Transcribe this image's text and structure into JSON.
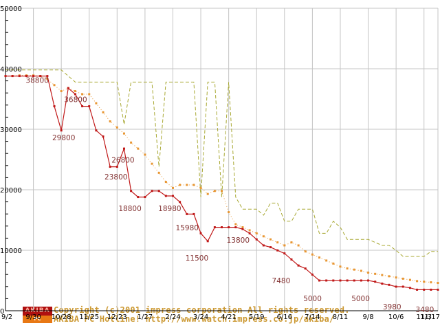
{
  "chart_data": {
    "type": "line",
    "title": "",
    "xlabel": "",
    "ylabel": "",
    "x_axis": {
      "tick_labels": [
        "9/2",
        "9/30",
        "10/28",
        "11/25",
        "12/23",
        "1/27",
        "2/24",
        "3/24",
        "4/21",
        "5/19",
        "6/16",
        "7/14",
        "8/11",
        "9/8",
        "10/6",
        "11/3",
        "11/17"
      ],
      "tick_weeks": [
        0,
        4,
        8,
        12,
        16,
        20,
        24,
        28,
        32,
        36,
        40,
        44,
        48,
        52,
        56,
        60,
        62
      ],
      "range": [
        0,
        62
      ]
    },
    "y_axis": {
      "ticks": [
        0,
        10000,
        20000,
        30000,
        40000,
        50000
      ],
      "range": [
        0,
        50000
      ],
      "minor_step": 2000
    },
    "grid": {
      "color": "#c4c4c4",
      "axis_color": "#000000"
    },
    "series": [
      {
        "name": "highest-price",
        "color": "#a8a832",
        "style": "dashed",
        "markers": false,
        "values": [
          39800,
          39800,
          39800,
          39800,
          39800,
          39800,
          39800,
          39800,
          39800,
          38800,
          37800,
          37800,
          37800,
          37800,
          37800,
          37800,
          37800,
          30800,
          37800,
          37800,
          37800,
          37800,
          23800,
          37800,
          37800,
          37800,
          37800,
          37800,
          18800,
          37800,
          37800,
          18800,
          37800,
          18800,
          16800,
          16800,
          16800,
          15800,
          17800,
          17800,
          14800,
          14800,
          16800,
          16800,
          16800,
          12800,
          12800,
          14800,
          13800,
          11800,
          11800,
          11800,
          11800,
          11300,
          10800,
          10800,
          9980,
          8980,
          8980,
          8980,
          8980,
          9800,
          9800
        ]
      },
      {
        "name": "average-price",
        "color": "#e89632",
        "style": "dotted",
        "markers": true,
        "values": [
          38800,
          38800,
          38900,
          38900,
          38900,
          38800,
          38300,
          37300,
          36300,
          36800,
          36300,
          35800,
          35800,
          34300,
          32800,
          31300,
          30300,
          29300,
          27800,
          26800,
          25800,
          24300,
          22800,
          21300,
          20300,
          20800,
          20800,
          20800,
          20300,
          19300,
          19800,
          19800,
          16300,
          14300,
          13800,
          13300,
          12800,
          12300,
          11800,
          11300,
          10800,
          11300,
          10800,
          9800,
          9300,
          8800,
          8300,
          7800,
          7300,
          7000,
          6800,
          6600,
          6300,
          6100,
          5900,
          5700,
          5500,
          5300,
          5100,
          4900,
          4800,
          4700,
          4600
        ]
      },
      {
        "name": "lowest-price",
        "color": "#c01818",
        "style": "solid",
        "markers": true,
        "values": [
          38800,
          38800,
          38800,
          38800,
          38800,
          38800,
          38800,
          33800,
          29800,
          36800,
          35800,
          33800,
          33800,
          29800,
          28800,
          23800,
          23800,
          26800,
          19800,
          18800,
          18800,
          19800,
          19800,
          18980,
          18980,
          17980,
          15980,
          15980,
          12800,
          11500,
          13800,
          13800,
          13800,
          13800,
          13500,
          12800,
          11800,
          10800,
          10500,
          9980,
          9480,
          8480,
          7480,
          6980,
          5980,
          5000,
          5000,
          5000,
          5000,
          5000,
          5000,
          5000,
          5000,
          4800,
          4480,
          4280,
          3980,
          3980,
          3780,
          3480,
          3480,
          3480,
          3480
        ]
      }
    ],
    "point_labels": [
      {
        "text": "38800",
        "week": 2.9,
        "value": 38600
      },
      {
        "text": "36800",
        "week": 8.4,
        "value": 35400
      },
      {
        "text": "29800",
        "week": 6.7,
        "value": 29100
      },
      {
        "text": "26800",
        "week": 15.2,
        "value": 25400
      },
      {
        "text": "23800",
        "week": 14.2,
        "value": 22600
      },
      {
        "text": "18800",
        "week": 16.2,
        "value": 17400
      },
      {
        "text": "18980",
        "week": 21.9,
        "value": 17400
      },
      {
        "text": "15980",
        "week": 24.4,
        "value": 14200
      },
      {
        "text": "11500",
        "week": 25.8,
        "value": 9200
      },
      {
        "text": "13800",
        "week": 31.7,
        "value": 12150
      },
      {
        "text": "7480",
        "week": 38.2,
        "value": 5450
      },
      {
        "text": "5000",
        "week": 42.7,
        "value": 2500
      },
      {
        "text": "5000",
        "week": 49.6,
        "value": 2500
      },
      {
        "text": "3980",
        "week": 54.1,
        "value": 1140
      },
      {
        "text": "3480",
        "week": 58.8,
        "value": 680
      }
    ],
    "label_color": "#823232",
    "legend": "none"
  },
  "footer": {
    "copyright_line1": "Copyright (c)2001 impress corporation All rights reserved.",
    "copyright_line2": "AKIBA PC Hotline! http://www.watch.impress.co.jp/akiba/",
    "text_color": "#cc9933",
    "logo": {
      "top_text": "AKIBA",
      "bottom_text": "PC Hotline!",
      "top_bg": "#b01010",
      "top_color": "#ffb0a0",
      "bottom_bg": "#e87814",
      "bottom_color": "#ffffff"
    }
  }
}
